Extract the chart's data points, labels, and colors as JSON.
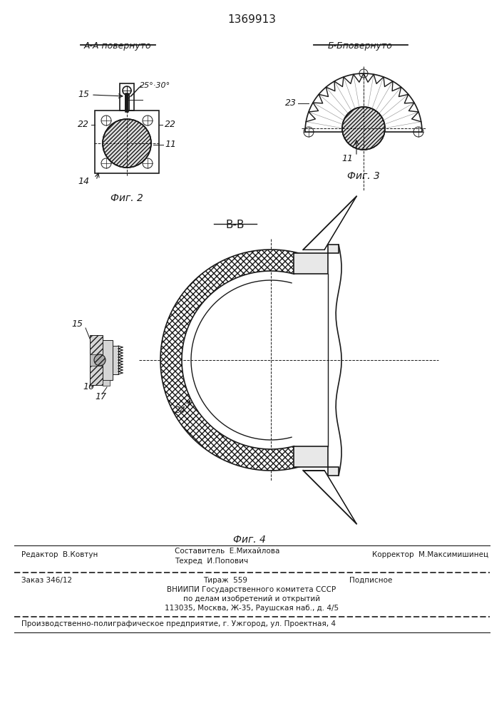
{
  "title_patent": "1369913",
  "fig2_label": "А-А повернуто",
  "fig3_label": "Б-Бповернуто",
  "fig4_section": "В-В",
  "fig2_caption": "Фиг. 2",
  "fig3_caption": "Фиг. 3",
  "fig4_caption": "Фиг. 4",
  "line_color": "#1a1a1a",
  "footer_line1_left": "Редактор  В.Ковтун",
  "footer_line1_center1": "Составитель  Е.Михайлова",
  "footer_line1_center2": "Техред  И.Попович",
  "footer_line1_right": "Корректор  М.Максимишинец",
  "footer_line2_left": "Заказ 346/12",
  "footer_line2_center": "Тираж  559",
  "footer_line2_right": "Подписное",
  "footer_line3": "ВНИИПИ Государственного комитета СССР",
  "footer_line4": "по делам изобретений и открытий",
  "footer_line5": "113035, Москва, Ж-35, Раушская наб., д. 4/5",
  "footer_line6": "Производственно-полиграфическое предприятие, г. Ужгород, ул. Проектная, 4"
}
